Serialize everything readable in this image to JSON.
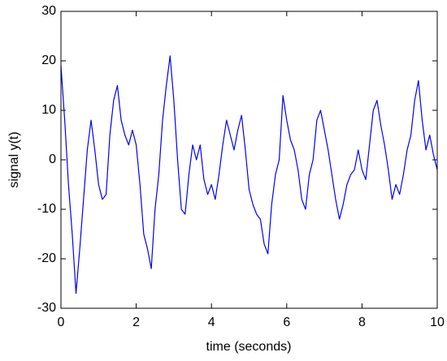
{
  "chart_data": {
    "type": "line",
    "xlabel": "time (seconds)",
    "ylabel": "signal y(t)",
    "x": [
      0,
      0.1,
      0.2,
      0.3,
      0.4,
      0.5,
      0.6,
      0.7,
      0.8,
      0.9,
      1,
      1.1,
      1.2,
      1.3,
      1.4,
      1.5,
      1.6,
      1.7,
      1.8,
      1.9,
      2,
      2.1,
      2.2,
      2.3,
      2.4,
      2.5,
      2.6,
      2.7,
      2.8,
      2.9,
      3,
      3.1,
      3.2,
      3.3,
      3.4,
      3.5,
      3.6,
      3.7,
      3.8,
      3.9,
      4,
      4.1,
      4.2,
      4.3,
      4.4,
      4.5,
      4.6,
      4.7,
      4.8,
      4.9,
      5,
      5.1,
      5.2,
      5.3,
      5.4,
      5.5,
      5.6,
      5.7,
      5.8,
      5.9,
      6,
      6.1,
      6.2,
      6.3,
      6.4,
      6.5,
      6.6,
      6.7,
      6.8,
      6.9,
      7,
      7.1,
      7.2,
      7.3,
      7.4,
      7.5,
      7.6,
      7.7,
      7.8,
      7.9,
      8,
      8.1,
      8.2,
      8.3,
      8.4,
      8.5,
      8.6,
      8.7,
      8.8,
      8.9,
      9,
      9.1,
      9.2,
      9.3,
      9.4,
      9.5,
      9.6,
      9.7,
      9.8,
      9.9,
      10
    ],
    "series": [
      {
        "color": "#0000ff",
        "values": [
          19,
          8,
          -5,
          -15,
          -27,
          -18,
          -8,
          2,
          8,
          2,
          -5,
          -8,
          -7,
          5,
          12,
          15,
          8,
          5,
          3,
          6,
          3,
          -5,
          -15,
          -18,
          -22,
          -10,
          -3,
          8,
          15,
          21,
          12,
          0,
          -10,
          -11,
          -3,
          3,
          0,
          3,
          -4,
          -7,
          -5,
          -8,
          -3,
          3,
          8,
          5,
          2,
          6,
          9,
          2,
          -6,
          -9,
          -11,
          -12,
          -17,
          -19,
          -9,
          -3,
          0,
          13,
          8,
          4,
          2,
          -2,
          -8,
          -10,
          -3,
          0,
          8,
          10,
          6,
          2,
          -3,
          -8,
          -12,
          -9,
          -5,
          -3,
          -2,
          2,
          -2,
          -4,
          3,
          10,
          12,
          7,
          3,
          -2,
          -8,
          -5,
          -7,
          -3,
          2,
          5,
          12,
          16,
          8,
          2,
          5,
          1,
          -2
        ]
      }
    ],
    "xlim": [
      0,
      10
    ],
    "xticks": [
      0,
      2,
      4,
      6,
      8,
      10
    ],
    "ylim": [
      -30,
      30
    ],
    "yticks": [
      -30,
      -20,
      -10,
      0,
      10,
      20,
      30
    ],
    "grid": false
  }
}
